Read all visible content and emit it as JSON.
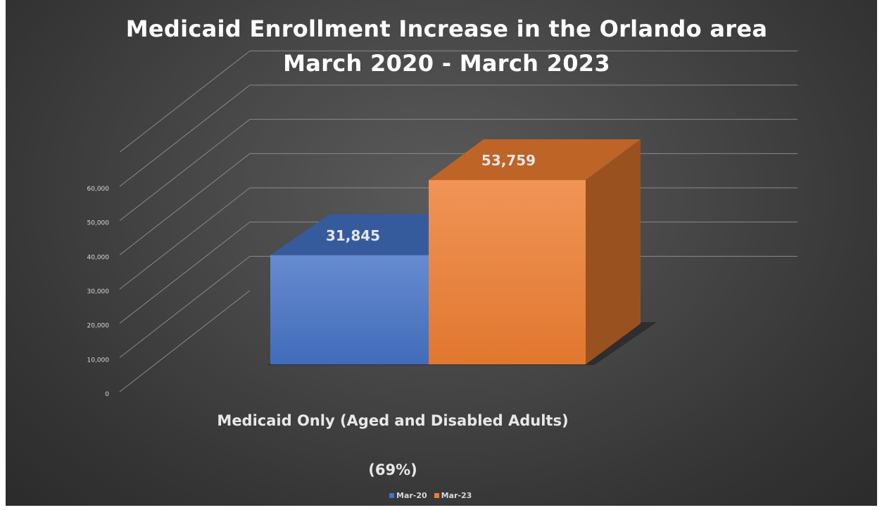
{
  "chart_data": {
    "type": "bar",
    "title": "Medicaid Enrollment Increase in the Orlando area",
    "subtitle": "March 2020 - March 2023",
    "categories": [
      "Medicaid Only (Aged and Disabled Adults)"
    ],
    "category_note": "(69%)",
    "series": [
      {
        "name": "Mar-20",
        "values": [
          31845
        ],
        "color": "#4472c4",
        "label": "31,845"
      },
      {
        "name": "Mar-23",
        "values": [
          53759
        ],
        "color": "#ed7d31",
        "label": "53,759"
      }
    ],
    "y_ticks": [
      "0",
      "10,000",
      "20,000",
      "30,000",
      "40,000",
      "50,000",
      "60,000"
    ],
    "ylim": [
      0,
      70000
    ],
    "grid": true,
    "legend_position": "bottom",
    "style": "3d-column"
  }
}
